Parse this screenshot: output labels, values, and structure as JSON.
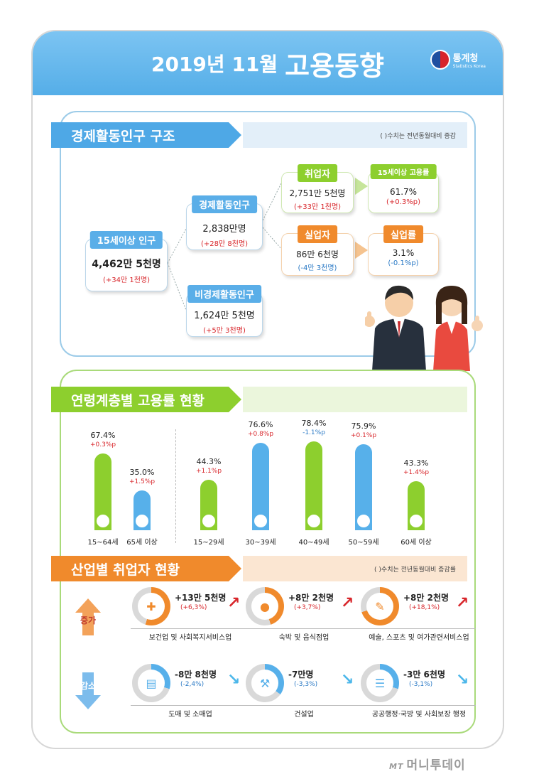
{
  "header": {
    "year_month": "2019년 11월",
    "title": "고용동향",
    "org_ko": "통계청",
    "org_en": "Statistics Korea"
  },
  "structure": {
    "heading": "경제활동인구 구조",
    "note": "( )수치는 전년동월대비 증감",
    "pop15": {
      "label": "15세이상 인구",
      "value": "4,462만 5천명",
      "delta": "(+34만 1천명)"
    },
    "active": {
      "label": "경제활동인구",
      "value": "2,838만명",
      "delta": "(+28만 8천명)"
    },
    "inactive": {
      "label": "비경제활동인구",
      "value": "1,624만 5천명",
      "delta": "(+5만 3천명)"
    },
    "employed": {
      "label": "취업자",
      "value": "2,751만 5천명",
      "delta": "(+33만 1천명)"
    },
    "unemployed": {
      "label": "실업자",
      "value": "86만 6천명",
      "delta": "(-4만 3천명)"
    },
    "emp_rate": {
      "label": "15세이상 고용률",
      "value": "61.7%",
      "delta": "(+0.3%p)"
    },
    "unemp_rate": {
      "label": "실업률",
      "value": "3.1%",
      "delta": "(-0.1%p)"
    }
  },
  "age": {
    "heading": "연령계층별 고용률 현황",
    "groups": [
      {
        "label": "15~64세",
        "value": "67.4%",
        "delta": "+0.3%p",
        "pct": 67.4,
        "color": "#8dcf2e",
        "dcolor": "red"
      },
      {
        "label": "65세 이상",
        "value": "35.0%",
        "delta": "+1.5%p",
        "pct": 35.0,
        "color": "#57b0ea",
        "dcolor": "red"
      },
      {
        "label": "15~29세",
        "value": "44.3%",
        "delta": "+1.1%p",
        "pct": 44.3,
        "color": "#8dcf2e",
        "dcolor": "red"
      },
      {
        "label": "30~39세",
        "value": "76.6%",
        "delta": "+0.8%p",
        "pct": 76.6,
        "color": "#57b0ea",
        "dcolor": "red"
      },
      {
        "label": "40~49세",
        "value": "78.4%",
        "delta": "-1.1%p",
        "pct": 78.4,
        "color": "#8dcf2e",
        "dcolor": "blue"
      },
      {
        "label": "50~59세",
        "value": "75.9%",
        "delta": "+0.1%p",
        "pct": 75.9,
        "color": "#57b0ea",
        "dcolor": "red"
      },
      {
        "label": "60세 이상",
        "value": "43.3%",
        "delta": "+1.4%p",
        "pct": 43.3,
        "color": "#8dcf2e",
        "dcolor": "red"
      }
    ]
  },
  "industry": {
    "heading": "산업별 취업자 현황",
    "note": "( )수치는 전년동월대비 증감률",
    "increase_label": "증가",
    "decrease_label": "감소",
    "increase": [
      {
        "name": "보건업 및 사회복지서비스업",
        "value": "+13만 5천명",
        "pct": "(+6,3%)",
        "fill": 0.55,
        "icon": "first-aid-kit-icon"
      },
      {
        "name": "숙박 및 음식점업",
        "value": "+8만 2천명",
        "pct": "(+3,7%)",
        "fill": 0.45,
        "icon": "dining-plate-icon"
      },
      {
        "name": "예술, 스포츠 및 여가관련서비스업",
        "value": "+8만 2천명",
        "pct": "(+18,1%)",
        "fill": 0.7,
        "icon": "palette-icon"
      }
    ],
    "decrease": [
      {
        "name": "도매 및 소매업",
        "value": "-8만 8천명",
        "pct": "(-2,4%)",
        "fill": 0.3,
        "icon": "shopping-basket-icon"
      },
      {
        "name": "건설업",
        "value": "-7만명",
        "pct": "(-3,3%)",
        "fill": 0.35,
        "icon": "excavator-icon"
      },
      {
        "name": "공공행정·국방 및 사회보장 행정",
        "value": "-3만 6천명",
        "pct": "(-3,1%)",
        "fill": 0.3,
        "icon": "scroll-document-icon"
      }
    ]
  },
  "colors": {
    "blue": "#57b0ea",
    "green": "#8dcf2e",
    "orange": "#f08a2c",
    "red": "#d8262b"
  },
  "watermark": "머니투데이"
}
